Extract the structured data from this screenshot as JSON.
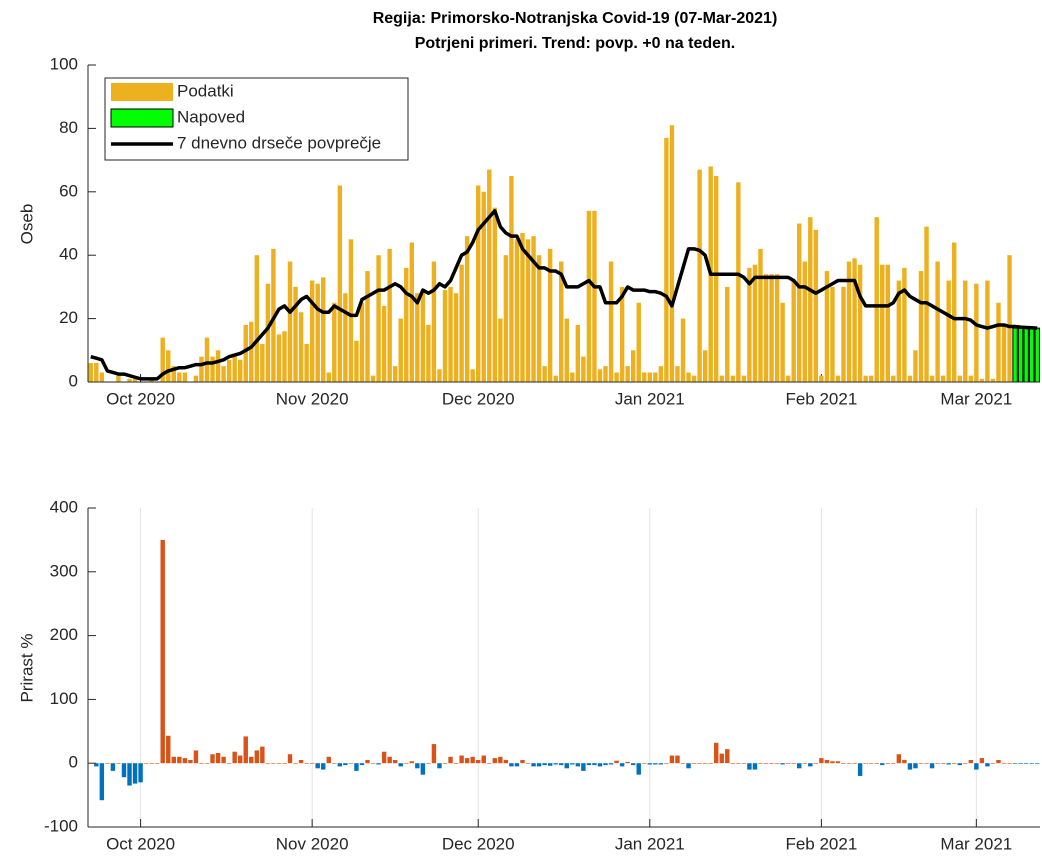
{
  "chart_data": [
    {
      "type": "bar",
      "title": "Regija: Primorsko-Notranjska Covid-19 (07-Mar-2021)",
      "subtitle": "Potrjeni primeri. Trend: povp. +0 na teden.",
      "ylabel": "Oseb",
      "ylim": [
        0,
        100
      ],
      "yticks": [
        0,
        20,
        40,
        60,
        80,
        100
      ],
      "legend": "upper left",
      "categories": [
        null,
        null,
        null,
        null,
        null,
        null,
        null,
        null,
        null,
        "Oct 2020",
        null,
        null,
        null,
        null,
        null,
        null,
        null,
        null,
        null,
        null,
        null,
        null,
        null,
        null,
        null,
        null,
        null,
        null,
        null,
        null,
        null,
        null,
        null,
        null,
        null,
        null,
        null,
        null,
        null,
        null,
        "Nov 2020",
        null,
        null,
        null,
        null,
        null,
        null,
        null,
        null,
        null,
        null,
        null,
        null,
        null,
        null,
        null,
        null,
        null,
        null,
        null,
        null,
        null,
        null,
        null,
        null,
        null,
        null,
        null,
        null,
        null,
        "Dec 2020",
        null,
        null,
        null,
        null,
        null,
        null,
        null,
        null,
        null,
        null,
        null,
        null,
        null,
        null,
        null,
        null,
        null,
        null,
        null,
        null,
        null,
        null,
        null,
        null,
        null,
        null,
        null,
        null,
        null,
        null,
        "Jan 2021",
        null,
        null,
        null,
        null,
        null,
        null,
        null,
        null,
        null,
        null,
        null,
        null,
        null,
        null,
        null,
        null,
        null,
        null,
        null,
        null,
        null,
        null,
        null,
        null,
        null,
        null,
        null,
        null,
        null,
        null,
        "Feb 2021",
        null,
        null,
        null,
        null,
        null,
        null,
        null,
        null,
        null,
        null,
        null,
        null,
        null,
        null,
        null,
        null,
        null,
        null,
        null,
        null,
        null,
        null,
        null,
        null,
        null,
        null,
        null,
        "Mar 2021",
        null,
        null,
        null,
        null,
        null,
        null,
        null,
        null,
        null,
        null,
        null
      ],
      "series": [
        {
          "name": "Podatki",
          "type": "bar",
          "color": "#edb120",
          "values": [
            6,
            6,
            3,
            0,
            0,
            2,
            0,
            1,
            1,
            0,
            0,
            1,
            0,
            14,
            10,
            5,
            3,
            3,
            0,
            2,
            8,
            14,
            8,
            10,
            5,
            7,
            9,
            7,
            18,
            19,
            40,
            12,
            31,
            42,
            15,
            16,
            38,
            30,
            22,
            12,
            32,
            31,
            33,
            3,
            25,
            62,
            28,
            45,
            13,
            25,
            35,
            2,
            40,
            24,
            42,
            5,
            20,
            36,
            44,
            28,
            28,
            18,
            38,
            4,
            29,
            30,
            28,
            37,
            46,
            4,
            62,
            60,
            67,
            55,
            20,
            40,
            65,
            45,
            47,
            45,
            46,
            40,
            5,
            42,
            2,
            38,
            20,
            3,
            18,
            8,
            54,
            54,
            4,
            5,
            38,
            3,
            30,
            5,
            10,
            25,
            3,
            3,
            3,
            5,
            77,
            81,
            5,
            20,
            3,
            2,
            67,
            10,
            68,
            65,
            2,
            30,
            2,
            63,
            2,
            36,
            37,
            42,
            34,
            34,
            34,
            25,
            2,
            32,
            50,
            38,
            52,
            48,
            2,
            35,
            30,
            2,
            30,
            38,
            39,
            37,
            2,
            2,
            52,
            37,
            37,
            2,
            32,
            36,
            2,
            10,
            35,
            49,
            2,
            38,
            2,
            32,
            44,
            2,
            32,
            2,
            31,
            1,
            32,
            1,
            25,
            18,
            40,
            null,
            null,
            null,
            null,
            null
          ]
        },
        {
          "name": "Napoved",
          "type": "bar",
          "color": "#00ff00",
          "values": [
            null,
            null,
            null,
            null,
            null,
            null,
            null,
            null,
            null,
            null,
            null,
            null,
            null,
            null,
            null,
            null,
            null,
            null,
            null,
            null,
            null,
            null,
            null,
            null,
            null,
            null,
            null,
            null,
            null,
            null,
            null,
            null,
            null,
            null,
            null,
            null,
            null,
            null,
            null,
            null,
            null,
            null,
            null,
            null,
            null,
            null,
            null,
            null,
            null,
            null,
            null,
            null,
            null,
            null,
            null,
            null,
            null,
            null,
            null,
            null,
            null,
            null,
            null,
            null,
            null,
            null,
            null,
            null,
            null,
            null,
            null,
            null,
            null,
            null,
            null,
            null,
            null,
            null,
            null,
            null,
            null,
            null,
            null,
            null,
            null,
            null,
            null,
            null,
            null,
            null,
            null,
            null,
            null,
            null,
            null,
            null,
            null,
            null,
            null,
            null,
            null,
            null,
            null,
            null,
            null,
            null,
            null,
            null,
            null,
            null,
            null,
            null,
            null,
            null,
            null,
            null,
            null,
            null,
            null,
            null,
            null,
            null,
            null,
            null,
            null,
            null,
            null,
            null,
            null,
            null,
            null,
            null,
            null,
            null,
            null,
            null,
            null,
            null,
            null,
            null,
            null,
            null,
            null,
            null,
            null,
            null,
            null,
            null,
            null,
            null,
            null,
            null,
            null,
            null,
            null,
            null,
            null,
            null,
            null,
            null,
            null,
            null,
            null,
            null,
            null,
            null,
            null,
            17,
            17,
            17,
            17,
            17
          ]
        },
        {
          "name": "7 dnevno drseče povprečje",
          "type": "line",
          "color": "#000000",
          "values": [
            8,
            7.5,
            7,
            3.5,
            3,
            2.5,
            2.5,
            2,
            1.5,
            1,
            1,
            1,
            1,
            2.5,
            3.5,
            4,
            4.5,
            4.5,
            5,
            5.5,
            5.5,
            6,
            6,
            6.5,
            7,
            8,
            8.5,
            9,
            10,
            11,
            13,
            15,
            17,
            20,
            23,
            24,
            22,
            24,
            26,
            27,
            25,
            23,
            22,
            22,
            24,
            23,
            22,
            21,
            21,
            26,
            27,
            28,
            29,
            29,
            30,
            31,
            30,
            28,
            27,
            25,
            29,
            28,
            29,
            31,
            30,
            32,
            36,
            40,
            41,
            44,
            48,
            50,
            52,
            54,
            49,
            47,
            46,
            46,
            42,
            40,
            38,
            36,
            36,
            35,
            35,
            34,
            30,
            30,
            30,
            31,
            32,
            30,
            30,
            25,
            25,
            25,
            27,
            30,
            29,
            29,
            29,
            28.5,
            28.5,
            28,
            27,
            24,
            30,
            36,
            42,
            42,
            41.5,
            40,
            34,
            34,
            34,
            34,
            34,
            34,
            33,
            31,
            33,
            33,
            33,
            33,
            33,
            33,
            33,
            32,
            30,
            30,
            29,
            28,
            29,
            30,
            31,
            32,
            32,
            32,
            32,
            27,
            24,
            24,
            24,
            24,
            24,
            25,
            28,
            29,
            27,
            26,
            25,
            25,
            24,
            23,
            22,
            21,
            20,
            20,
            20,
            19.5,
            18,
            17.5,
            17,
            17.5,
            18,
            18,
            17.5,
            17.5,
            17.3,
            17.2,
            17.1,
            17
          ]
        }
      ]
    },
    {
      "type": "bar",
      "ylabel": "Prirast %",
      "ylim": [
        -100,
        400
      ],
      "yticks": [
        -100,
        0,
        100,
        200,
        300,
        400
      ],
      "grid": "x",
      "positive_color": "#d95319",
      "negative_color": "#0072bd",
      "categories": [
        null,
        null,
        null,
        null,
        null,
        null,
        null,
        null,
        null,
        "Oct 2020",
        null,
        null,
        null,
        null,
        null,
        null,
        null,
        null,
        null,
        null,
        null,
        null,
        null,
        null,
        null,
        null,
        null,
        null,
        null,
        null,
        null,
        null,
        null,
        null,
        null,
        null,
        null,
        null,
        null,
        null,
        "Nov 2020",
        null,
        null,
        null,
        null,
        null,
        null,
        null,
        null,
        null,
        null,
        null,
        null,
        null,
        null,
        null,
        null,
        null,
        null,
        null,
        null,
        null,
        null,
        null,
        null,
        null,
        null,
        null,
        null,
        null,
        "Dec 2020",
        null,
        null,
        null,
        null,
        null,
        null,
        null,
        null,
        null,
        null,
        null,
        null,
        null,
        null,
        null,
        null,
        null,
        null,
        null,
        null,
        null,
        null,
        null,
        null,
        null,
        null,
        null,
        null,
        null,
        null,
        "Jan 2021",
        null,
        null,
        null,
        null,
        null,
        null,
        null,
        null,
        null,
        null,
        null,
        null,
        null,
        null,
        null,
        null,
        null,
        null,
        null,
        null,
        null,
        null,
        null,
        null,
        null,
        null,
        null,
        null,
        null,
        null,
        "Feb 2021",
        null,
        null,
        null,
        null,
        null,
        null,
        null,
        null,
        null,
        null,
        null,
        null,
        null,
        null,
        null,
        null,
        null,
        null,
        null,
        null,
        null,
        null,
        null,
        null,
        null,
        null,
        null,
        "Mar 2021",
        null,
        null,
        null,
        null,
        null,
        null,
        null,
        null,
        null,
        null,
        null
      ],
      "values": [
        0,
        -5,
        -58,
        0,
        -12,
        0,
        -22,
        -35,
        -32,
        -30,
        0,
        0,
        0,
        350,
        43,
        10,
        10,
        8,
        5,
        20,
        0,
        0,
        14,
        16,
        10,
        0,
        18,
        12,
        42,
        10,
        20,
        26,
        0,
        0,
        0,
        0,
        14,
        0,
        5,
        0,
        0,
        -8,
        -10,
        10,
        0,
        -5,
        -3,
        0,
        -12,
        -3,
        5,
        0,
        -2,
        18,
        10,
        5,
        -5,
        0,
        3,
        -8,
        -18,
        0,
        30,
        -8,
        0,
        10,
        0,
        12,
        8,
        10,
        5,
        12,
        0,
        8,
        10,
        5,
        -5,
        -5,
        5,
        0,
        -5,
        -5,
        -3,
        -4,
        -2,
        -3,
        -8,
        -2,
        -5,
        -12,
        -3,
        -3,
        -5,
        -3,
        -2,
        4,
        -5,
        2,
        -3,
        -18,
        0,
        -2,
        -2,
        -2,
        0,
        12,
        12,
        0,
        -8,
        0,
        0,
        0,
        0,
        32,
        15,
        22,
        0,
        0,
        0,
        -10,
        -10,
        0,
        0,
        0,
        0,
        -2,
        0,
        0,
        -8,
        0,
        -5,
        0,
        8,
        5,
        3,
        3,
        0,
        0,
        0,
        -20,
        0,
        0,
        0,
        -3,
        0,
        0,
        14,
        5,
        -10,
        -8,
        0,
        0,
        -8,
        0,
        0,
        -2,
        0,
        -3,
        0,
        5,
        -10,
        8,
        -5,
        0,
        5,
        0,
        0,
        -1,
        -1,
        -1,
        -1,
        -1
      ]
    }
  ]
}
